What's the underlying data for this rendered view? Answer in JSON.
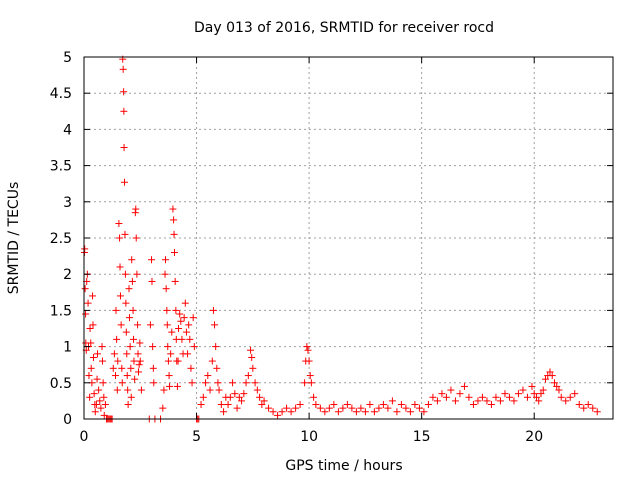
{
  "chart_data": {
    "type": "scatter",
    "title": "Day 013 of 2016, SRMTID for receiver rocd",
    "xlabel": "GPS time / hours",
    "ylabel": "SRMTID / TECUs",
    "xlim": [
      0,
      23.5
    ],
    "ylim": [
      0,
      5
    ],
    "x_ticks": [
      0,
      5,
      10,
      15,
      20
    ],
    "x_tick_labels": [
      "0",
      "5",
      "10",
      "15",
      "20"
    ],
    "y_ticks": [
      0,
      0.5,
      1,
      1.5,
      2,
      2.5,
      3,
      3.5,
      4,
      4.5,
      5
    ],
    "y_tick_labels": [
      "0",
      "0.5",
      "1",
      "1.5",
      "2",
      "2.5",
      "3",
      "3.5",
      "4",
      "4.5",
      "5"
    ],
    "grid": true,
    "marker": "+",
    "series": [
      {
        "name": "SRMTID",
        "color": "#ff0000",
        "points": [
          [
            0.02,
            2.3
          ],
          [
            0.03,
            2.35
          ],
          [
            0.05,
            1.8
          ],
          [
            0.07,
            1.45
          ],
          [
            0.08,
            1.05
          ],
          [
            0.1,
            0.95
          ],
          [
            0.12,
            1.9
          ],
          [
            0.15,
            2.0
          ],
          [
            0.18,
            1.6
          ],
          [
            0.2,
            1.0
          ],
          [
            0.22,
            0.6
          ],
          [
            0.25,
            0.3
          ],
          [
            0.27,
            1.25
          ],
          [
            0.3,
            1.05
          ],
          [
            0.32,
            0.7
          ],
          [
            0.35,
            0.5
          ],
          [
            0.38,
            1.7
          ],
          [
            0.4,
            1.3
          ],
          [
            0.42,
            0.85
          ],
          [
            0.45,
            0.35
          ],
          [
            0.48,
            0.2
          ],
          [
            0.5,
            0.1
          ],
          [
            0.55,
            0.2
          ],
          [
            0.58,
            0.55
          ],
          [
            0.6,
            0.9
          ],
          [
            0.65,
            0.4
          ],
          [
            0.7,
            0.25
          ],
          [
            0.75,
            0.15
          ],
          [
            0.8,
            1.0
          ],
          [
            0.82,
            0.8
          ],
          [
            0.85,
            0.5
          ],
          [
            0.88,
            0.3
          ],
          [
            0.9,
            0.05
          ],
          [
            0.95,
            0.2
          ],
          [
            1.0,
            0.0
          ],
          [
            1.05,
            0.0
          ],
          [
            1.1,
            0.0
          ],
          [
            1.15,
            0.0
          ],
          [
            1.2,
            0.0
          ],
          [
            1.25,
            0.0
          ],
          [
            1.3,
            0.7
          ],
          [
            1.35,
            0.9
          ],
          [
            1.4,
            0.6
          ],
          [
            1.42,
            1.5
          ],
          [
            1.45,
            1.1
          ],
          [
            1.48,
            0.4
          ],
          [
            1.5,
            0.8
          ],
          [
            1.55,
            2.7
          ],
          [
            1.58,
            2.5
          ],
          [
            1.6,
            2.1
          ],
          [
            1.62,
            1.7
          ],
          [
            1.65,
            1.3
          ],
          [
            1.68,
            0.7
          ],
          [
            1.7,
            0.5
          ],
          [
            1.72,
            4.97
          ],
          [
            1.74,
            4.83
          ],
          [
            1.76,
            4.52
          ],
          [
            1.77,
            4.25
          ],
          [
            1.78,
            3.75
          ],
          [
            1.8,
            3.27
          ],
          [
            1.82,
            2.55
          ],
          [
            1.84,
            2.0
          ],
          [
            1.86,
            1.6
          ],
          [
            1.88,
            1.2
          ],
          [
            1.9,
            0.9
          ],
          [
            1.92,
            0.6
          ],
          [
            1.94,
            0.4
          ],
          [
            1.96,
            0.2
          ],
          [
            2.0,
            1.8
          ],
          [
            2.02,
            1.4
          ],
          [
            2.05,
            1.0
          ],
          [
            2.08,
            0.7
          ],
          [
            2.1,
            0.3
          ],
          [
            2.12,
            2.2
          ],
          [
            2.15,
            1.9
          ],
          [
            2.18,
            1.5
          ],
          [
            2.2,
            1.1
          ],
          [
            2.22,
            0.8
          ],
          [
            2.25,
            0.55
          ],
          [
            2.28,
            2.85
          ],
          [
            2.3,
            2.9
          ],
          [
            2.32,
            2.5
          ],
          [
            2.35,
            2.0
          ],
          [
            2.38,
            1.3
          ],
          [
            2.4,
            0.9
          ],
          [
            2.42,
            0.65
          ],
          [
            2.45,
            0.75
          ],
          [
            2.48,
            1.05
          ],
          [
            2.5,
            0.8
          ],
          [
            2.55,
            0.4
          ],
          [
            2.9,
            0.0
          ],
          [
            2.95,
            1.3
          ],
          [
            3.0,
            2.2
          ],
          [
            3.02,
            1.9
          ],
          [
            3.05,
            1.0
          ],
          [
            3.08,
            0.7
          ],
          [
            3.1,
            0.5
          ],
          [
            3.15,
            0.0
          ],
          [
            3.4,
            0.0
          ],
          [
            3.5,
            0.15
          ],
          [
            3.55,
            0.4
          ],
          [
            3.6,
            2.0
          ],
          [
            3.62,
            2.2
          ],
          [
            3.65,
            1.8
          ],
          [
            3.68,
            1.5
          ],
          [
            3.7,
            1.3
          ],
          [
            3.72,
            1.0
          ],
          [
            3.75,
            0.8
          ],
          [
            3.78,
            0.6
          ],
          [
            3.8,
            0.45
          ],
          [
            3.85,
            0.9
          ],
          [
            3.9,
            1.2
          ],
          [
            3.95,
            2.9
          ],
          [
            3.98,
            2.75
          ],
          [
            4.0,
            2.55
          ],
          [
            4.02,
            2.3
          ],
          [
            4.05,
            1.9
          ],
          [
            4.08,
            1.5
          ],
          [
            4.1,
            1.1
          ],
          [
            4.12,
            0.8
          ],
          [
            4.15,
            0.45
          ],
          [
            4.18,
            0.8
          ],
          [
            4.2,
            1.25
          ],
          [
            4.25,
            1.45
          ],
          [
            4.3,
            1.35
          ],
          [
            4.35,
            1.1
          ],
          [
            4.4,
            0.9
          ],
          [
            4.45,
            1.4
          ],
          [
            4.5,
            1.6
          ],
          [
            4.55,
            1.2
          ],
          [
            4.6,
            0.9
          ],
          [
            4.65,
            1.3
          ],
          [
            4.7,
            1.1
          ],
          [
            4.75,
            0.7
          ],
          [
            4.8,
            0.5
          ],
          [
            4.85,
            1.4
          ],
          [
            4.9,
            1.0
          ],
          [
            5.0,
            0.0
          ],
          [
            5.05,
            0.0
          ],
          [
            5.1,
            0.0
          ],
          [
            5.2,
            0.2
          ],
          [
            5.3,
            0.3
          ],
          [
            5.4,
            0.5
          ],
          [
            5.5,
            0.6
          ],
          [
            5.6,
            0.4
          ],
          [
            5.7,
            0.8
          ],
          [
            5.75,
            1.5
          ],
          [
            5.8,
            1.3
          ],
          [
            5.85,
            1.0
          ],
          [
            5.9,
            0.7
          ],
          [
            5.95,
            0.5
          ],
          [
            6.0,
            0.4
          ],
          [
            6.1,
            0.2
          ],
          [
            6.2,
            0.1
          ],
          [
            6.3,
            0.3
          ],
          [
            6.4,
            0.2
          ],
          [
            6.5,
            0.3
          ],
          [
            6.6,
            0.5
          ],
          [
            6.7,
            0.35
          ],
          [
            6.8,
            0.15
          ],
          [
            6.9,
            0.3
          ],
          [
            7.0,
            0.25
          ],
          [
            7.1,
            0.35
          ],
          [
            7.2,
            0.5
          ],
          [
            7.3,
            0.6
          ],
          [
            7.4,
            0.95
          ],
          [
            7.45,
            0.85
          ],
          [
            7.5,
            0.7
          ],
          [
            7.6,
            0.5
          ],
          [
            7.7,
            0.4
          ],
          [
            7.8,
            0.3
          ],
          [
            7.9,
            0.2
          ],
          [
            8.0,
            0.25
          ],
          [
            8.2,
            0.15
          ],
          [
            8.4,
            0.1
          ],
          [
            8.6,
            0.05
          ],
          [
            8.8,
            0.1
          ],
          [
            9.0,
            0.15
          ],
          [
            9.2,
            0.1
          ],
          [
            9.4,
            0.15
          ],
          [
            9.6,
            0.2
          ],
          [
            9.8,
            0.5
          ],
          [
            9.85,
            0.8
          ],
          [
            9.9,
            1.0
          ],
          [
            9.95,
            0.95
          ],
          [
            10.0,
            0.8
          ],
          [
            10.05,
            0.6
          ],
          [
            10.1,
            0.5
          ],
          [
            10.2,
            0.3
          ],
          [
            10.3,
            0.2
          ],
          [
            10.5,
            0.15
          ],
          [
            10.7,
            0.1
          ],
          [
            10.9,
            0.15
          ],
          [
            11.1,
            0.2
          ],
          [
            11.3,
            0.1
          ],
          [
            11.5,
            0.15
          ],
          [
            11.7,
            0.2
          ],
          [
            11.9,
            0.15
          ],
          [
            12.1,
            0.1
          ],
          [
            12.3,
            0.15
          ],
          [
            12.5,
            0.1
          ],
          [
            12.7,
            0.2
          ],
          [
            12.9,
            0.1
          ],
          [
            13.1,
            0.15
          ],
          [
            13.3,
            0.2
          ],
          [
            13.5,
            0.15
          ],
          [
            13.7,
            0.25
          ],
          [
            13.9,
            0.1
          ],
          [
            14.1,
            0.2
          ],
          [
            14.3,
            0.15
          ],
          [
            14.5,
            0.1
          ],
          [
            14.7,
            0.2
          ],
          [
            14.9,
            0.15
          ],
          [
            15.1,
            0.1
          ],
          [
            15.3,
            0.2
          ],
          [
            15.5,
            0.3
          ],
          [
            15.7,
            0.25
          ],
          [
            15.9,
            0.35
          ],
          [
            16.1,
            0.3
          ],
          [
            16.3,
            0.4
          ],
          [
            16.5,
            0.25
          ],
          [
            16.7,
            0.35
          ],
          [
            16.9,
            0.45
          ],
          [
            17.1,
            0.3
          ],
          [
            17.3,
            0.2
          ],
          [
            17.5,
            0.25
          ],
          [
            17.7,
            0.3
          ],
          [
            17.9,
            0.25
          ],
          [
            18.1,
            0.2
          ],
          [
            18.3,
            0.3
          ],
          [
            18.5,
            0.25
          ],
          [
            18.7,
            0.35
          ],
          [
            18.9,
            0.3
          ],
          [
            19.1,
            0.25
          ],
          [
            19.3,
            0.35
          ],
          [
            19.5,
            0.4
          ],
          [
            19.7,
            0.3
          ],
          [
            19.9,
            0.45
          ],
          [
            20.0,
            0.35
          ],
          [
            20.1,
            0.3
          ],
          [
            20.2,
            0.25
          ],
          [
            20.3,
            0.35
          ],
          [
            20.4,
            0.4
          ],
          [
            20.5,
            0.55
          ],
          [
            20.6,
            0.6
          ],
          [
            20.7,
            0.65
          ],
          [
            20.8,
            0.6
          ],
          [
            20.9,
            0.5
          ],
          [
            21.0,
            0.45
          ],
          [
            21.1,
            0.4
          ],
          [
            21.2,
            0.3
          ],
          [
            21.4,
            0.25
          ],
          [
            21.6,
            0.3
          ],
          [
            21.8,
            0.35
          ],
          [
            22.0,
            0.2
          ],
          [
            22.2,
            0.15
          ],
          [
            22.4,
            0.2
          ],
          [
            22.6,
            0.15
          ],
          [
            22.8,
            0.1
          ]
        ]
      }
    ]
  }
}
